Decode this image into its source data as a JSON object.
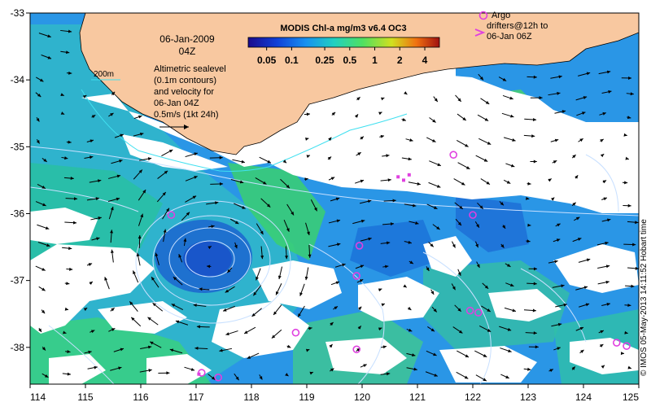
{
  "title": "MODIS Chl-a mg/m3 v6.4 OC3",
  "date_label": "06-Jan-2009",
  "time_label": "04Z",
  "depth_legend_label": "200m",
  "description_lines": [
    "Altimetric sealevel",
    "(0.1m contours)",
    "and velocity for",
    "06-Jan 04Z",
    "0.5m/s (1kt 24h)"
  ],
  "argo_legend_lines": [
    "Argo",
    "drifters@12h to",
    "06-Jan 06Z"
  ],
  "colorbar": {
    "tick_labels": [
      "0.05",
      "0.1",
      "0.25",
      "0.5",
      "1",
      "2",
      "4"
    ],
    "tick_values": [
      0.05,
      0.1,
      0.25,
      0.5,
      1,
      2,
      4
    ],
    "range": [
      0.03,
      6
    ]
  },
  "axes": {
    "x_ticks": [
      114,
      115,
      116,
      117,
      118,
      119,
      120,
      121,
      122,
      123,
      124,
      125
    ],
    "y_ticks": [
      -33,
      -34,
      -35,
      -36,
      -37,
      -38
    ],
    "xlim": [
      114,
      125
    ],
    "ylim": [
      -38.55,
      -33
    ]
  },
  "credit": "© IMOS 05-May-2013 14:11:52 Hobart time",
  "colors": {
    "land": "#f8c8a0",
    "cloud": "#ffffff",
    "contour": "#c8e0ff",
    "depth_line": "#40e0f0",
    "argo": "#e040e0",
    "arrow": "#000000"
  },
  "argo_floats": [
    [
      121.65,
      -35.12
    ],
    [
      122.0,
      -36.02
    ],
    [
      116.55,
      -36.02
    ],
    [
      119.95,
      -36.48
    ],
    [
      119.9,
      -36.93
    ],
    [
      118.8,
      -37.78
    ],
    [
      119.9,
      -38.03
    ],
    [
      121.95,
      -37.45
    ],
    [
      122.1,
      -37.48
    ],
    [
      124.6,
      -37.93
    ],
    [
      124.78,
      -37.98
    ],
    [
      117.1,
      -38.38
    ],
    [
      117.4,
      -38.45
    ]
  ],
  "eddy_center": [
    117.3,
    -36.55
  ]
}
